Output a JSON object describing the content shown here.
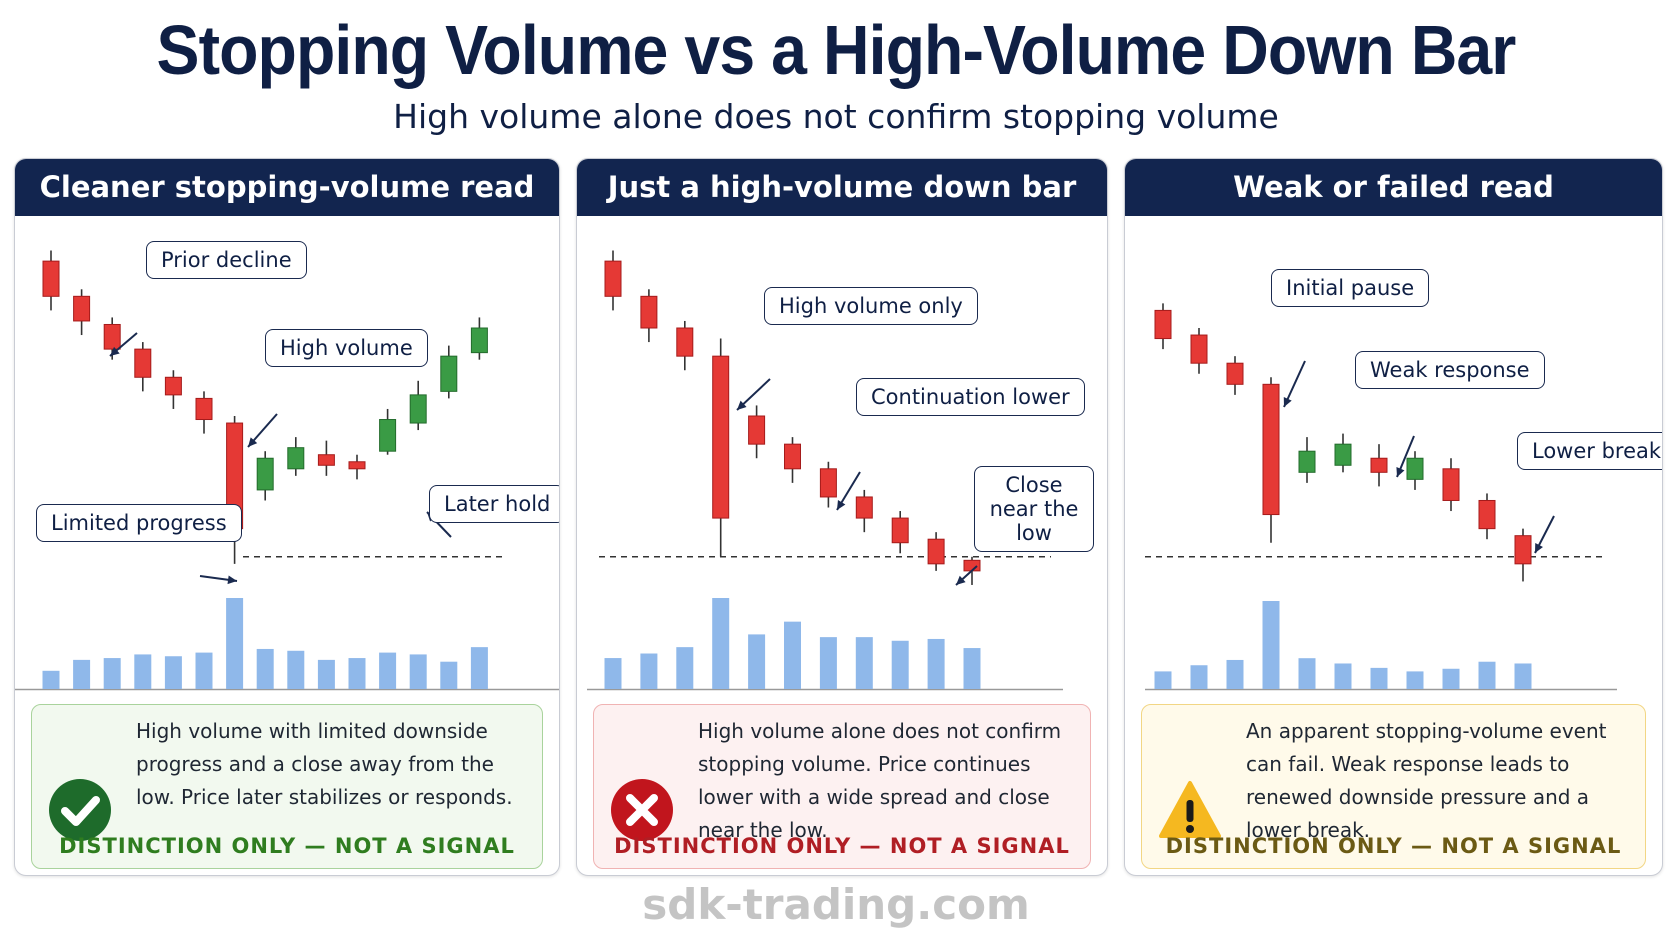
{
  "title": "Stopping Volume vs a High-Volume Down Bar",
  "subtitle": "High volume alone does not confirm stopping volume",
  "colors": {
    "navy": "#12254f",
    "up": "#3a9b45",
    "down": "#e53935",
    "volume": "#8fb8ea",
    "green_note_bg": "#f2f9ef",
    "green_note_border": "#a9d39c",
    "green_tag": "#2f7d1f",
    "red_note_bg": "#fdf1f1",
    "red_note_border": "#f0b3b3",
    "red_tag": "#b01e24",
    "yellow_note_bg": "#fffaea",
    "yellow_note_border": "#f2d684",
    "yellow_tag": "#6b5a14"
  },
  "panels": [
    {
      "heading": "Cleaner stopping-volume read",
      "callouts": {
        "a": "Prior decline",
        "b": "High volume",
        "c": "Limited progress",
        "d": "Later hold"
      },
      "note": {
        "kind": "check",
        "icon": "check-circle-icon",
        "text": "High volume with limited downside progress and a close away from the low. Price later stabilizes or responds.",
        "tag": "DISTINCTION ONLY — NOT A SIGNAL"
      }
    },
    {
      "heading": "Just a high-volume down bar",
      "callouts": {
        "a": "High volume only",
        "b": "Continuation lower",
        "c": "Close near the low"
      },
      "note": {
        "kind": "cross",
        "icon": "x-circle-icon",
        "text": "High volume alone does not confirm stopping volume. Price continues lower with a wide spread and close near the low.",
        "tag": "DISTINCTION ONLY — NOT A SIGNAL"
      }
    },
    {
      "heading": "Weak or failed read",
      "callouts": {
        "a": "Initial pause",
        "b": "Weak response",
        "c": "Lower break"
      },
      "note": {
        "kind": "warn",
        "icon": "warning-triangle-icon",
        "text": "An apparent stopping-volume event can fail. Weak response leads to renewed downside pressure and a lower break.",
        "tag": "DISTINCTION ONLY — NOT A SIGNAL"
      }
    }
  ],
  "chart_data": [
    {
      "type": "candlestick",
      "title": "Cleaner stopping-volume read",
      "price_range": [
        0,
        100
      ],
      "volume_range": [
        0,
        100
      ],
      "support_line": 10,
      "candles": [
        {
          "o": 94,
          "c": 84,
          "h": 97,
          "l": 80,
          "dir": "down"
        },
        {
          "o": 84,
          "c": 77,
          "h": 86,
          "l": 73,
          "dir": "down"
        },
        {
          "o": 76,
          "c": 69,
          "h": 78,
          "l": 66,
          "dir": "down"
        },
        {
          "o": 69,
          "c": 61,
          "h": 71,
          "l": 57,
          "dir": "down"
        },
        {
          "o": 61,
          "c": 56,
          "h": 63,
          "l": 52,
          "dir": "down"
        },
        {
          "o": 55,
          "c": 49,
          "h": 57,
          "l": 45,
          "dir": "down"
        },
        {
          "o": 48,
          "c": 18,
          "h": 50,
          "l": 8,
          "dir": "down"
        },
        {
          "o": 29,
          "c": 38,
          "h": 40,
          "l": 26,
          "dir": "up"
        },
        {
          "o": 35,
          "c": 41,
          "h": 44,
          "l": 33,
          "dir": "up"
        },
        {
          "o": 39,
          "c": 36,
          "h": 43,
          "l": 33,
          "dir": "down"
        },
        {
          "o": 37,
          "c": 35,
          "h": 39,
          "l": 32,
          "dir": "down"
        },
        {
          "o": 40,
          "c": 49,
          "h": 52,
          "l": 39,
          "dir": "up"
        },
        {
          "o": 48,
          "c": 56,
          "h": 60,
          "l": 46,
          "dir": "up"
        },
        {
          "o": 57,
          "c": 67,
          "h": 70,
          "l": 55,
          "dir": "up"
        },
        {
          "o": 68,
          "c": 75,
          "h": 78,
          "l": 66,
          "dir": "up"
        }
      ],
      "volume": [
        20,
        32,
        34,
        38,
        36,
        40,
        100,
        44,
        42,
        32,
        34,
        40,
        38,
        30,
        46
      ]
    },
    {
      "type": "candlestick",
      "title": "Just a high-volume down bar",
      "price_range": [
        0,
        100
      ],
      "volume_range": [
        0,
        100
      ],
      "support_line": 10,
      "candles": [
        {
          "o": 94,
          "c": 84,
          "h": 97,
          "l": 80,
          "dir": "down"
        },
        {
          "o": 84,
          "c": 75,
          "h": 86,
          "l": 71,
          "dir": "down"
        },
        {
          "o": 75,
          "c": 67,
          "h": 77,
          "l": 63,
          "dir": "down"
        },
        {
          "o": 67,
          "c": 21,
          "h": 72,
          "l": 10,
          "dir": "down"
        },
        {
          "o": 50,
          "c": 42,
          "h": 53,
          "l": 38,
          "dir": "down"
        },
        {
          "o": 42,
          "c": 35,
          "h": 44,
          "l": 31,
          "dir": "down"
        },
        {
          "o": 35,
          "c": 27,
          "h": 37,
          "l": 24,
          "dir": "down"
        },
        {
          "o": 27,
          "c": 21,
          "h": 29,
          "l": 17,
          "dir": "down"
        },
        {
          "o": 21,
          "c": 14,
          "h": 23,
          "l": 11,
          "dir": "down"
        },
        {
          "o": 15,
          "c": 8,
          "h": 17,
          "l": 6,
          "dir": "down"
        },
        {
          "o": 9,
          "c": 6,
          "h": 10,
          "l": 2,
          "dir": "down"
        }
      ],
      "volume": [
        34,
        39,
        46,
        100,
        60,
        74,
        57,
        57,
        53,
        55,
        45
      ]
    },
    {
      "type": "candlestick",
      "title": "Weak or failed read",
      "price_range": [
        0,
        100
      ],
      "volume_range": [
        0,
        100
      ],
      "support_line": 10,
      "candles": [
        {
          "o": 80,
          "c": 72,
          "h": 82,
          "l": 69,
          "dir": "down"
        },
        {
          "o": 73,
          "c": 65,
          "h": 75,
          "l": 62,
          "dir": "down"
        },
        {
          "o": 65,
          "c": 59,
          "h": 67,
          "l": 56,
          "dir": "down"
        },
        {
          "o": 59,
          "c": 22,
          "h": 61,
          "l": 14,
          "dir": "down"
        },
        {
          "o": 34,
          "c": 40,
          "h": 44,
          "l": 31,
          "dir": "up"
        },
        {
          "o": 36,
          "c": 42,
          "h": 45,
          "l": 34,
          "dir": "up"
        },
        {
          "o": 38,
          "c": 34,
          "h": 42,
          "l": 30,
          "dir": "down"
        },
        {
          "o": 32,
          "c": 38,
          "h": 40,
          "l": 29,
          "dir": "up"
        },
        {
          "o": 35,
          "c": 26,
          "h": 38,
          "l": 23,
          "dir": "down"
        },
        {
          "o": 26,
          "c": 18,
          "h": 28,
          "l": 15,
          "dir": "down"
        },
        {
          "o": 16,
          "c": 8,
          "h": 18,
          "l": 3,
          "dir": "down"
        }
      ],
      "volume": [
        20,
        27,
        33,
        100,
        35,
        29,
        24,
        20,
        23,
        31,
        29
      ]
    }
  ],
  "footer": "sdk-trading.com"
}
